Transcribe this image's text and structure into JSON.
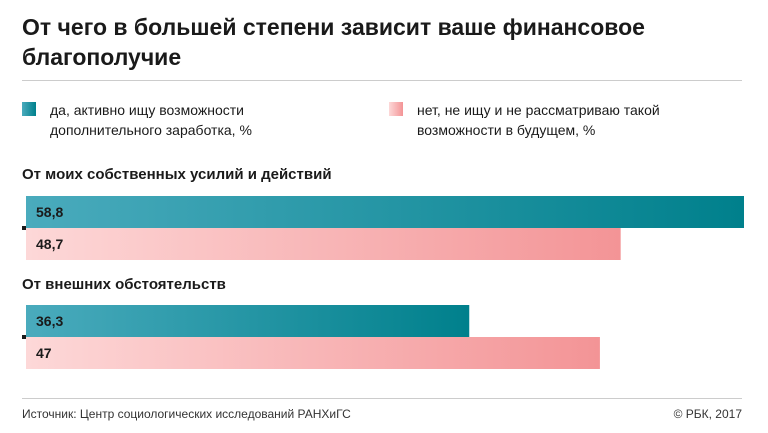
{
  "title": "От чего в большей степени зависит ваше финансовое благополучие",
  "legend": [
    {
      "label": "да, активно ищу возможности дополнительного заработка, %",
      "color": "#00808c"
    },
    {
      "label": "нет, не ищу и не рассматриваю такой возможности в будущем, %",
      "color": "#f39496"
    }
  ],
  "chart_data": {
    "type": "bar",
    "orientation": "horizontal",
    "categories": [
      "От моих собственных усилий и действий",
      "От внешних обстоятельств"
    ],
    "series": [
      {
        "name": "да, активно ищу возможности дополнительного заработка, %",
        "values": [
          58.8,
          36.3
        ],
        "labels": [
          "58,8",
          "36,3"
        ],
        "color": "#00808c"
      },
      {
        "name": "нет, не ищу и не рассматриваю такой возможности в будущем, %",
        "values": [
          48.7,
          47
        ],
        "labels": [
          "48,7",
          "47"
        ],
        "color": "#f39496"
      }
    ],
    "xlim": [
      0,
      58.8
    ],
    "grid": false
  },
  "footer": {
    "source": "Источник: Центр социологических исследований РАНХиГС",
    "copyright": "© РБК, 2017"
  }
}
